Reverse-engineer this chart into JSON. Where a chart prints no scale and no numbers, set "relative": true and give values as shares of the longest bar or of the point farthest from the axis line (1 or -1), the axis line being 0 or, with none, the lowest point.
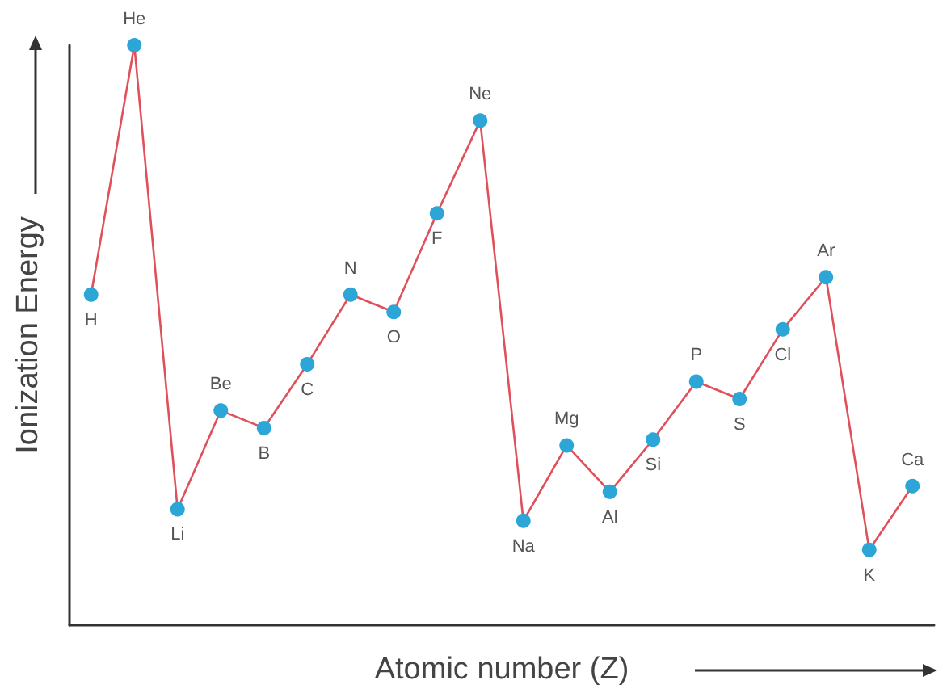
{
  "chart_data": {
    "type": "line",
    "relative": true,
    "xlabel": "Atomic number (Z)",
    "ylabel": "Ionization Energy",
    "categories": [
      "H",
      "He",
      "Li",
      "Be",
      "B",
      "C",
      "N",
      "O",
      "F",
      "Ne",
      "Na",
      "Mg",
      "Al",
      "Si",
      "P",
      "S",
      "Cl",
      "Ar",
      "K",
      "Ca"
    ],
    "series": [
      {
        "color": "#e0505a",
        "values": [
          0.57,
          1,
          0.2,
          0.37,
          0.34,
          0.45,
          0.57,
          0.54,
          0.71,
          0.87,
          0.18,
          0.31,
          0.23,
          0.32,
          0.42,
          0.39,
          0.51,
          0.6,
          0.13,
          0.24
        ],
        "colors": [
          "#2ba6d6",
          "#2ba6d6",
          "#2ba6d6",
          "#2ba6d6",
          "#2ba6d6",
          "#2ba6d6",
          "#2ba6d6",
          "#2ba6d6",
          "#2ba6d6",
          "#2ba6d6",
          "#2ba6d6",
          "#2ba6d6",
          "#2ba6d6",
          "#2ba6d6",
          "#2ba6d6",
          "#2ba6d6",
          "#2ba6d6",
          "#2ba6d6",
          "#2ba6d6",
          "#2ba6d6"
        ]
      }
    ],
    "marker": "circle",
    "line_style": "solid",
    "grid": false
  }
}
